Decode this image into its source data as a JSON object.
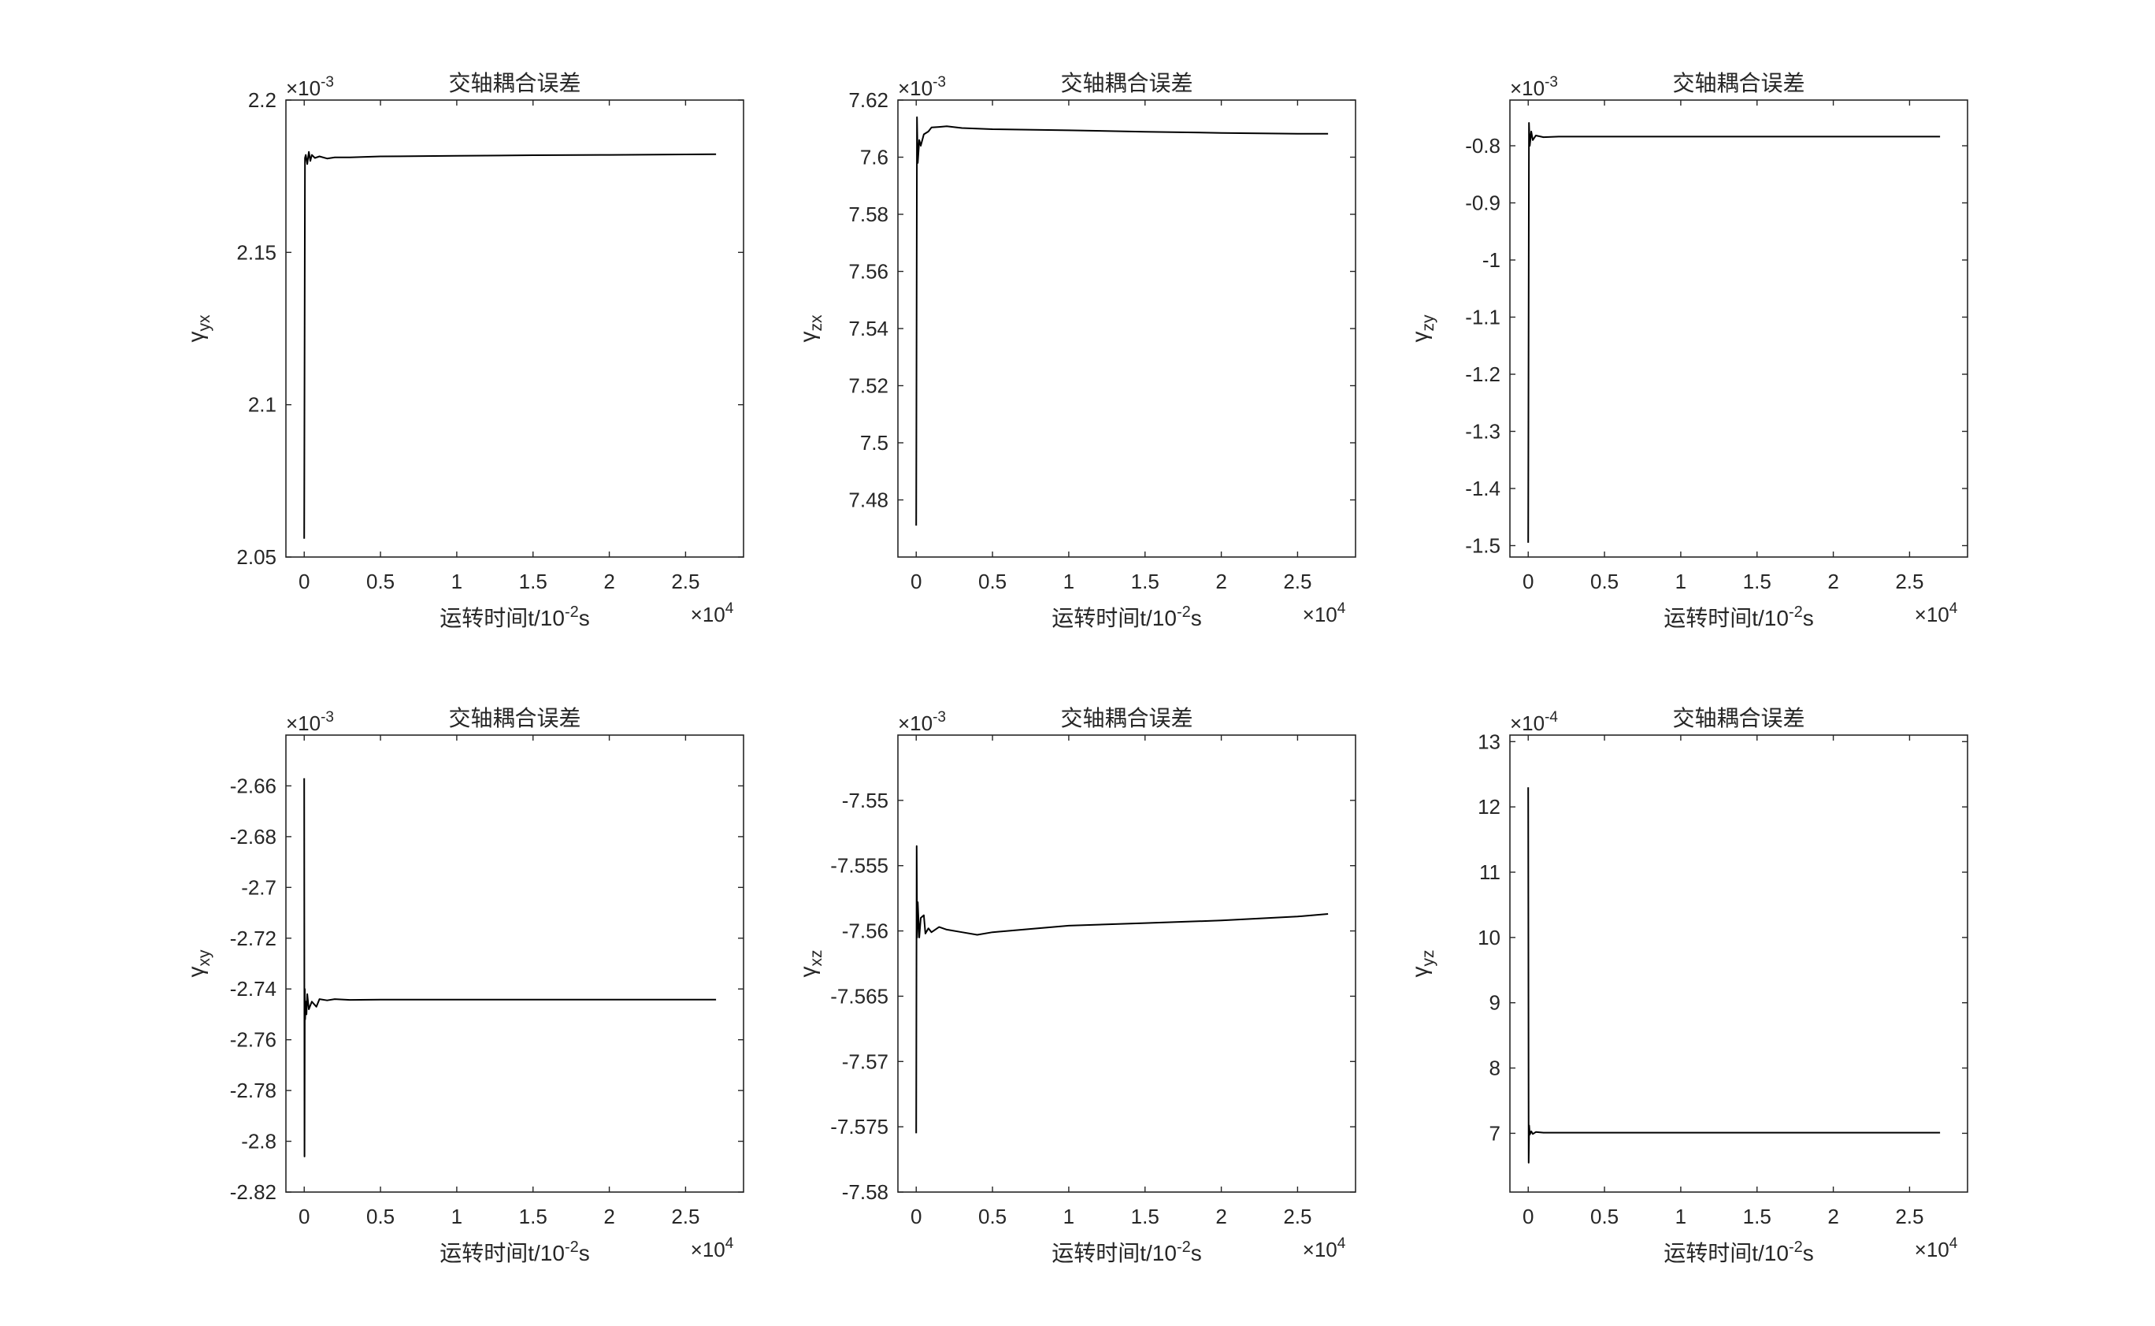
{
  "figure": {
    "background": "#ffffff",
    "line_color": "#000000",
    "axis_color": "#262626"
  },
  "chart_data": [
    {
      "type": "line",
      "title": "交轴耦合误差",
      "xlabel": "运转时间t/10^-2s",
      "xlabel_parts": {
        "main": "运转时间t/10",
        "sup": "-2",
        "tail": "s"
      },
      "ylabel": "γyx",
      "ylabel_parts": {
        "sym": "γ",
        "sub": "yx"
      },
      "x_exponent": {
        "base": "×10",
        "power": "4"
      },
      "y_exponent": {
        "base": "×10",
        "power": "-3"
      },
      "xlim": [
        -0.12,
        2.88
      ],
      "ylim": [
        2.05,
        2.2
      ],
      "xticks": [
        0,
        0.5,
        1,
        1.5,
        2,
        2.5
      ],
      "xtick_labels": [
        "0",
        "0.5",
        "1",
        "1.5",
        "2",
        "2.5"
      ],
      "yticks": [
        2.05,
        2.1,
        2.15,
        2.2
      ],
      "ytick_labels": [
        "2.05",
        "2.1",
        "2.15",
        "2.2"
      ],
      "grid": false,
      "series": [
        {
          "x": [
            0,
            0.005,
            0.01,
            0.02,
            0.03,
            0.04,
            0.05,
            0.07,
            0.1,
            0.15,
            0.2,
            0.3,
            0.5,
            1,
            1.5,
            2,
            2.7
          ],
          "y": [
            2.056,
            2.181,
            2.182,
            2.179,
            2.183,
            2.18,
            2.182,
            2.181,
            2.1815,
            2.1808,
            2.1812,
            2.1812,
            2.1815,
            2.1817,
            2.1819,
            2.182,
            2.1822
          ]
        }
      ]
    },
    {
      "type": "line",
      "title": "交轴耦合误差",
      "xlabel": "运转时间t/10^-2s",
      "xlabel_parts": {
        "main": "运转时间t/10",
        "sup": "-2",
        "tail": "s"
      },
      "ylabel": "γzx",
      "ylabel_parts": {
        "sym": "γ",
        "sub": "zx"
      },
      "x_exponent": {
        "base": "×10",
        "power": "4"
      },
      "y_exponent": {
        "base": "×10",
        "power": "-3"
      },
      "xlim": [
        -0.12,
        2.88
      ],
      "ylim": [
        7.46,
        7.62
      ],
      "xticks": [
        0,
        0.5,
        1,
        1.5,
        2,
        2.5
      ],
      "xtick_labels": [
        "0",
        "0.5",
        "1",
        "1.5",
        "2",
        "2.5"
      ],
      "yticks": [
        7.48,
        7.5,
        7.52,
        7.54,
        7.56,
        7.58,
        7.6,
        7.62
      ],
      "ytick_labels": [
        "7.48",
        "7.5",
        "7.52",
        "7.54",
        "7.56",
        "7.58",
        "7.6",
        "7.62"
      ],
      "grid": false,
      "series": [
        {
          "x": [
            0,
            0.005,
            0.01,
            0.02,
            0.03,
            0.05,
            0.08,
            0.1,
            0.15,
            0.2,
            0.3,
            0.5,
            1,
            1.5,
            2,
            2.5,
            2.7
          ],
          "y": [
            7.471,
            7.614,
            7.598,
            7.606,
            7.604,
            7.608,
            7.609,
            7.6104,
            7.6106,
            7.6108,
            7.6102,
            7.6098,
            7.6094,
            7.6089,
            7.6085,
            7.6082,
            7.6082
          ]
        }
      ]
    },
    {
      "type": "line",
      "title": "交轴耦合误差",
      "xlabel": "运转时间t/10^-2s",
      "xlabel_parts": {
        "main": "运转时间t/10",
        "sup": "-2",
        "tail": "s"
      },
      "ylabel": "γzy",
      "ylabel_parts": {
        "sym": "γ",
        "sub": "zy"
      },
      "x_exponent": {
        "base": "×10",
        "power": "4"
      },
      "y_exponent": {
        "base": "×10",
        "power": "-3"
      },
      "xlim": [
        -0.12,
        2.88
      ],
      "ylim": [
        -1.52,
        -0.72
      ],
      "xticks": [
        0,
        0.5,
        1,
        1.5,
        2,
        2.5
      ],
      "xtick_labels": [
        "0",
        "0.5",
        "1",
        "1.5",
        "2",
        "2.5"
      ],
      "yticks": [
        -1.5,
        -1.4,
        -1.3,
        -1.2,
        -1.1,
        -1,
        -0.9,
        -0.8
      ],
      "ytick_labels": [
        "-1.5",
        "-1.4",
        "-1.3",
        "-1.2",
        "-1.1",
        "-1",
        "-0.9",
        "-0.8"
      ],
      "grid": false,
      "series": [
        {
          "x": [
            0,
            0.005,
            0.01,
            0.02,
            0.03,
            0.05,
            0.1,
            0.2,
            0.5,
            1,
            1.5,
            2,
            2.7
          ],
          "y": [
            -1.495,
            -0.76,
            -0.8,
            -0.775,
            -0.79,
            -0.782,
            -0.785,
            -0.784,
            -0.784,
            -0.784,
            -0.784,
            -0.784,
            -0.784
          ]
        }
      ]
    },
    {
      "type": "line",
      "title": "交轴耦合误差",
      "xlabel": "运转时间t/10^-2s",
      "xlabel_parts": {
        "main": "运转时间t/10",
        "sup": "-2",
        "tail": "s"
      },
      "ylabel": "γxy",
      "ylabel_parts": {
        "sym": "γ",
        "sub": "xy"
      },
      "x_exponent": {
        "base": "×10",
        "power": "4"
      },
      "y_exponent": {
        "base": "×10",
        "power": "-3"
      },
      "xlim": [
        -0.12,
        2.88
      ],
      "ylim": [
        -2.82,
        -2.64
      ],
      "xticks": [
        0,
        0.5,
        1,
        1.5,
        2,
        2.5
      ],
      "xtick_labels": [
        "0",
        "0.5",
        "1",
        "1.5",
        "2",
        "2.5"
      ],
      "yticks": [
        -2.82,
        -2.8,
        -2.78,
        -2.76,
        -2.74,
        -2.72,
        -2.7,
        -2.68,
        -2.66
      ],
      "ytick_labels": [
        "-2.82",
        "-2.8",
        "-2.78",
        "-2.76",
        "-2.74",
        "-2.72",
        "-2.7",
        "-2.68",
        "-2.66"
      ],
      "grid": false,
      "series": [
        {
          "x": [
            0,
            0.002,
            0.004,
            0.006,
            0.01,
            0.015,
            0.02,
            0.03,
            0.05,
            0.08,
            0.1,
            0.15,
            0.2,
            0.3,
            0.5,
            1,
            1.5,
            2,
            2.7
          ],
          "y": [
            -2.657,
            -2.806,
            -2.74,
            -2.752,
            -2.745,
            -2.75,
            -2.742,
            -2.748,
            -2.745,
            -2.747,
            -2.744,
            -2.7445,
            -2.744,
            -2.7443,
            -2.7442,
            -2.7442,
            -2.7442,
            -2.7442,
            -2.7442
          ]
        }
      ]
    },
    {
      "type": "line",
      "title": "交轴耦合误差",
      "xlabel": "运转时间t/10^-2s",
      "xlabel_parts": {
        "main": "运转时间t/10",
        "sup": "-2",
        "tail": "s"
      },
      "ylabel": "γxz",
      "ylabel_parts": {
        "sym": "γ",
        "sub": "xz"
      },
      "x_exponent": {
        "base": "×10",
        "power": "4"
      },
      "y_exponent": {
        "base": "×10",
        "power": "-3"
      },
      "xlim": [
        -0.12,
        2.88
      ],
      "ylim": [
        -7.58,
        -7.545
      ],
      "xticks": [
        0,
        0.5,
        1,
        1.5,
        2,
        2.5
      ],
      "xtick_labels": [
        "0",
        "0.5",
        "1",
        "1.5",
        "2",
        "2.5"
      ],
      "yticks": [
        -7.58,
        -7.575,
        -7.57,
        -7.565,
        -7.56,
        -7.555,
        -7.55
      ],
      "ytick_labels": [
        "-7.58",
        "-7.575",
        "-7.57",
        "-7.565",
        "-7.56",
        "-7.555",
        "-7.55"
      ],
      "grid": false,
      "series": [
        {
          "x": [
            0,
            0.003,
            0.006,
            0.01,
            0.02,
            0.03,
            0.05,
            0.06,
            0.08,
            0.1,
            0.15,
            0.2,
            0.3,
            0.4,
            0.5,
            0.7,
            1,
            1.5,
            2,
            2.5,
            2.7
          ],
          "y": [
            -7.5755,
            -7.5535,
            -7.5605,
            -7.5578,
            -7.5605,
            -7.559,
            -7.5588,
            -7.5602,
            -7.5598,
            -7.5601,
            -7.5597,
            -7.5599,
            -7.5601,
            -7.5603,
            -7.5601,
            -7.5599,
            -7.5596,
            -7.5594,
            -7.5592,
            -7.5589,
            -7.5587
          ]
        }
      ]
    },
    {
      "type": "line",
      "title": "交轴耦合误差",
      "xlabel": "运转时间t/10^-2s",
      "xlabel_parts": {
        "main": "运转时间t/10",
        "sup": "-2",
        "tail": "s"
      },
      "ylabel": "γyz",
      "ylabel_parts": {
        "sym": "γ",
        "sub": "yz"
      },
      "x_exponent": {
        "base": "×10",
        "power": "4"
      },
      "y_exponent": {
        "base": "×10",
        "power": "-4"
      },
      "xlim": [
        -0.12,
        2.88
      ],
      "ylim": [
        6.1,
        13.1
      ],
      "xticks": [
        0,
        0.5,
        1,
        1.5,
        2,
        2.5
      ],
      "xtick_labels": [
        "0",
        "0.5",
        "1",
        "1.5",
        "2",
        "2.5"
      ],
      "yticks": [
        7,
        8,
        9,
        10,
        11,
        12,
        13
      ],
      "ytick_labels": [
        "7",
        "8",
        "9",
        "10",
        "11",
        "12",
        "13"
      ],
      "grid": false,
      "series": [
        {
          "x": [
            0,
            0.003,
            0.006,
            0.01,
            0.02,
            0.03,
            0.05,
            0.1,
            0.2,
            0.5,
            1,
            1.5,
            2,
            2.7
          ],
          "y": [
            12.3,
            6.55,
            7.12,
            6.98,
            7.03,
            6.99,
            7.02,
            7.01,
            7.01,
            7.01,
            7.01,
            7.01,
            7.01,
            7.01
          ]
        }
      ]
    }
  ]
}
